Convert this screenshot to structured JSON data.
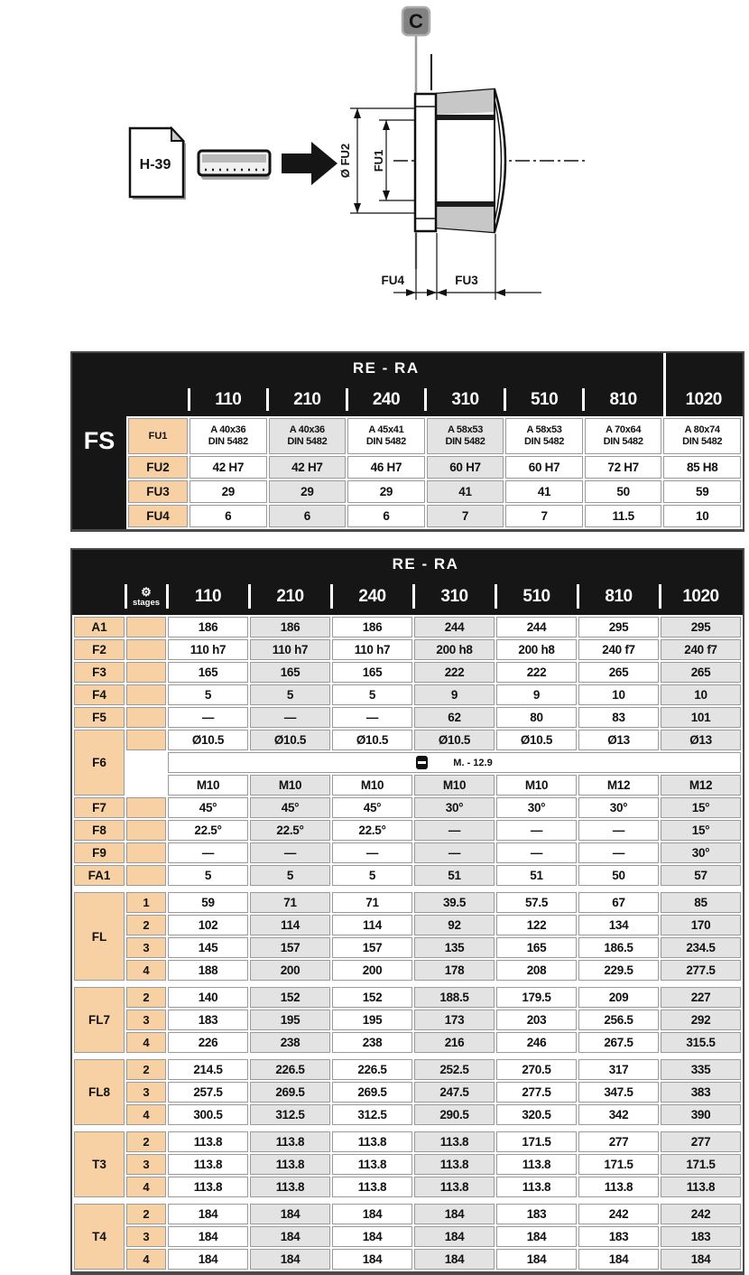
{
  "colors": {
    "header_black": "#161616",
    "label_peach": "#f7d0a3",
    "shaded_gray": "#e3e3e3",
    "border_gray": "#9a9a9a"
  },
  "diagram": {
    "section_marker": "C",
    "page_ref": "H-39",
    "dim_fu2": "Ø FU2",
    "dim_fu1": "FU1",
    "dim_fu4": "FU4",
    "dim_fu3": "FU3"
  },
  "table1": {
    "header": "RE - RA",
    "side_label": "FS",
    "columns": [
      "110",
      "210",
      "240",
      "310",
      "510",
      "810",
      "1020"
    ],
    "rows": [
      {
        "label": "FU1",
        "values": [
          "A 40x36\nDIN 5482",
          "A 40x36\nDIN 5482",
          "A 45x41\nDIN 5482",
          "A 58x53\nDIN 5482",
          "A 58x53\nDIN 5482",
          "A 70x64\nDIN 5482",
          "A 80x74\nDIN 5482"
        ]
      },
      {
        "label": "FU2",
        "values": [
          "42 H7",
          "42 H7",
          "46 H7",
          "60 H7",
          "60 H7",
          "72 H7",
          "85 H8"
        ]
      },
      {
        "label": "FU3",
        "values": [
          "29",
          "29",
          "29",
          "41",
          "41",
          "50",
          "59"
        ]
      },
      {
        "label": "FU4",
        "values": [
          "6",
          "6",
          "6",
          "7",
          "7",
          "11.5",
          "10"
        ]
      }
    ]
  },
  "table2": {
    "header": "RE - RA",
    "stages_icon": "⚙",
    "stages_label": "stages",
    "columns": [
      "110",
      "210",
      "240",
      "310",
      "510",
      "810",
      "1020"
    ],
    "rows": [
      {
        "label": "A1",
        "values": [
          "186",
          "186",
          "186",
          "244",
          "244",
          "295",
          "295"
        ]
      },
      {
        "label": "F2",
        "values": [
          "110 h7",
          "110 h7",
          "110 h7",
          "200 h8",
          "200 h8",
          "240 f7",
          "240 f7"
        ]
      },
      {
        "label": "F3",
        "values": [
          "165",
          "165",
          "165",
          "222",
          "222",
          "265",
          "265"
        ]
      },
      {
        "label": "F4",
        "values": [
          "5",
          "5",
          "5",
          "9",
          "9",
          "10",
          "10"
        ]
      },
      {
        "label": "F5",
        "values": [
          "—",
          "—",
          "—",
          "62",
          "80",
          "83",
          "101"
        ]
      },
      {
        "label": "F6",
        "type": "f6",
        "top": [
          "Ø10.5",
          "Ø10.5",
          "Ø10.5",
          "Ø10.5",
          "Ø10.5",
          "Ø13",
          "Ø13"
        ],
        "note": "M. - 12.9",
        "bottom": [
          "M10",
          "M10",
          "M10",
          "M10",
          "M10",
          "M12",
          "M12"
        ]
      },
      {
        "label": "F7",
        "values": [
          "45°",
          "45°",
          "45°",
          "30°",
          "30°",
          "30°",
          "15°"
        ]
      },
      {
        "label": "F8",
        "values": [
          "22.5°",
          "22.5°",
          "22.5°",
          "—",
          "—",
          "—",
          "15°"
        ]
      },
      {
        "label": "F9",
        "values": [
          "—",
          "—",
          "—",
          "—",
          "—",
          "—",
          "30°"
        ]
      },
      {
        "label": "FA1",
        "values": [
          "5",
          "5",
          "5",
          "51",
          "51",
          "50",
          "57"
        ]
      },
      {
        "label": "FL",
        "type": "group",
        "stages": [
          "1",
          "2",
          "3",
          "4"
        ],
        "rows": [
          [
            "59",
            "71",
            "71",
            "39.5",
            "57.5",
            "67",
            "85"
          ],
          [
            "102",
            "114",
            "114",
            "92",
            "122",
            "134",
            "170"
          ],
          [
            "145",
            "157",
            "157",
            "135",
            "165",
            "186.5",
            "234.5"
          ],
          [
            "188",
            "200",
            "200",
            "178",
            "208",
            "229.5",
            "277.5"
          ]
        ]
      },
      {
        "label": "FL7",
        "type": "group",
        "stages": [
          "2",
          "3",
          "4"
        ],
        "rows": [
          [
            "140",
            "152",
            "152",
            "188.5",
            "179.5",
            "209",
            "227"
          ],
          [
            "183",
            "195",
            "195",
            "173",
            "203",
            "256.5",
            "292"
          ],
          [
            "226",
            "238",
            "238",
            "216",
            "246",
            "267.5",
            "315.5"
          ]
        ]
      },
      {
        "label": "FL8",
        "type": "group",
        "stages": [
          "2",
          "3",
          "4"
        ],
        "rows": [
          [
            "214.5",
            "226.5",
            "226.5",
            "252.5",
            "270.5",
            "317",
            "335"
          ],
          [
            "257.5",
            "269.5",
            "269.5",
            "247.5",
            "277.5",
            "347.5",
            "383"
          ],
          [
            "300.5",
            "312.5",
            "312.5",
            "290.5",
            "320.5",
            "342",
            "390"
          ]
        ]
      },
      {
        "label": "T3",
        "type": "group",
        "stages": [
          "2",
          "3",
          "4"
        ],
        "rows": [
          [
            "113.8",
            "113.8",
            "113.8",
            "113.8",
            "171.5",
            "277",
            "277"
          ],
          [
            "113.8",
            "113.8",
            "113.8",
            "113.8",
            "113.8",
            "171.5",
            "171.5"
          ],
          [
            "113.8",
            "113.8",
            "113.8",
            "113.8",
            "113.8",
            "113.8",
            "113.8"
          ]
        ]
      },
      {
        "label": "T4",
        "type": "group",
        "stages": [
          "2",
          "3",
          "4"
        ],
        "rows": [
          [
            "184",
            "184",
            "184",
            "184",
            "183",
            "242",
            "242"
          ],
          [
            "184",
            "184",
            "184",
            "184",
            "184",
            "183",
            "183"
          ],
          [
            "184",
            "184",
            "184",
            "184",
            "184",
            "184",
            "184"
          ]
        ]
      }
    ]
  }
}
